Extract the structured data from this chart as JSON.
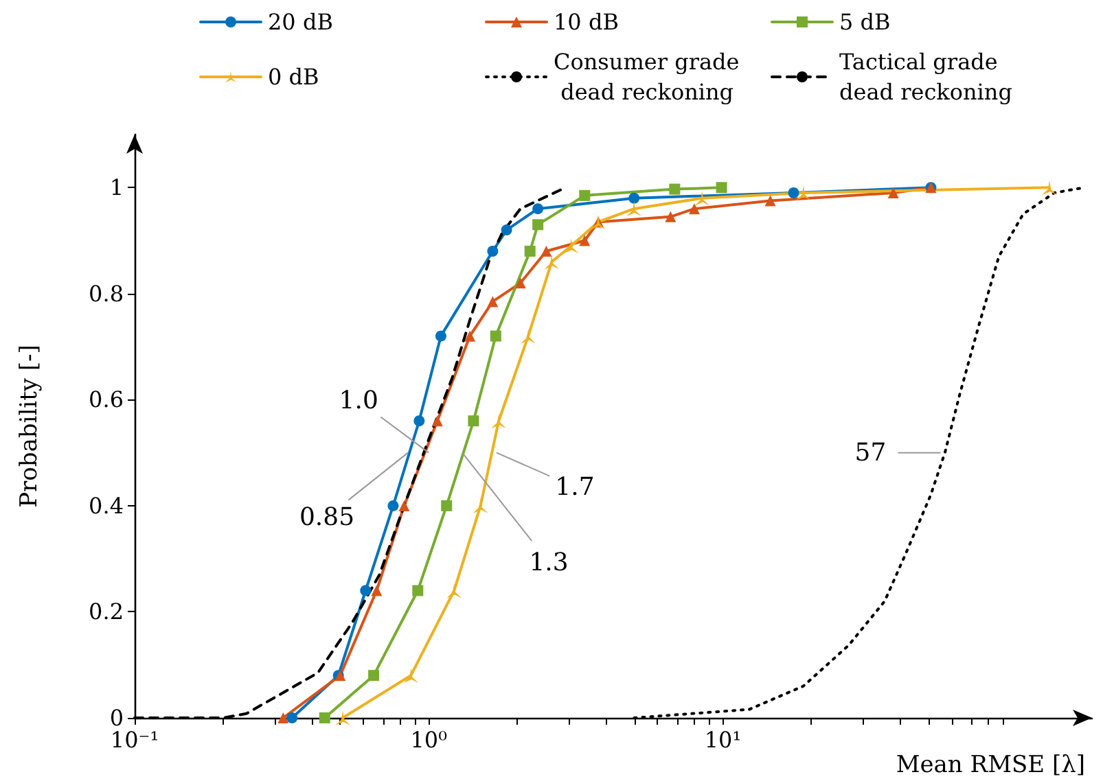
{
  "chart_data": {
    "type": "line",
    "xlabel": "Mean RMSE [λ]",
    "ylabel": "Probability [-]",
    "log": "x",
    "grid": false,
    "legend": "top",
    "xlim": [
      0.1,
      180
    ],
    "ylim": [
      0,
      1.1
    ],
    "xticks": [
      {
        "value": 0.1,
        "label": "10⁻¹"
      },
      {
        "value": 0.2,
        "label": null
      },
      {
        "value": 0.3,
        "label": null
      },
      {
        "value": 0.4,
        "label": null
      },
      {
        "value": 0.5,
        "label": null
      },
      {
        "value": 0.6,
        "label": null
      },
      {
        "value": 0.7,
        "label": null
      },
      {
        "value": 0.8,
        "label": null
      },
      {
        "value": 0.9,
        "label": null
      },
      {
        "value": 1,
        "label": "10⁰"
      },
      {
        "value": 2,
        "label": null
      },
      {
        "value": 3,
        "label": null
      },
      {
        "value": 4,
        "label": null
      },
      {
        "value": 5,
        "label": null
      },
      {
        "value": 6,
        "label": null
      },
      {
        "value": 7,
        "label": null
      },
      {
        "value": 8,
        "label": null
      },
      {
        "value": 9,
        "label": null
      },
      {
        "value": 10,
        "label": "10¹"
      },
      {
        "value": 20,
        "label": null
      },
      {
        "value": 30,
        "label": null
      },
      {
        "value": 40,
        "label": null
      },
      {
        "value": 50,
        "label": null
      },
      {
        "value": 60,
        "label": null
      },
      {
        "value": 70,
        "label": null
      },
      {
        "value": 80,
        "label": null
      },
      {
        "value": 90,
        "label": null
      }
    ],
    "yticks": [
      0,
      0.2,
      0.4,
      0.6,
      0.8,
      1
    ],
    "series": [
      {
        "name": "20 dB",
        "color": "#0072bd",
        "marker": "circle",
        "line_style": "solid",
        "x": [
          0.343,
          0.493,
          0.61,
          0.757,
          0.928,
          1.1,
          1.65,
          1.84,
          2.35,
          4.99,
          17.4,
          51
        ],
        "values": [
          0,
          0.08,
          0.24,
          0.4,
          0.56,
          0.72,
          0.88,
          0.92,
          0.96,
          0.98,
          0.99,
          1
        ]
      },
      {
        "name": "10 dB",
        "color": "#d95319",
        "marker": "triangle",
        "line_style": "solid",
        "x": [
          0.32,
          0.5,
          0.665,
          0.825,
          1.07,
          1.38,
          1.65,
          2.05,
          2.51,
          3.39,
          3.77,
          6.64,
          8,
          14.5,
          38,
          51
        ],
        "values": [
          0,
          0.08,
          0.24,
          0.4,
          0.56,
          0.72,
          0.785,
          0.82,
          0.88,
          0.9,
          0.935,
          0.945,
          0.96,
          0.975,
          0.99,
          1
        ]
      },
      {
        "name": "5 dB",
        "color": "#77ac30",
        "marker": "square",
        "line_style": "solid",
        "x": [
          0.443,
          0.65,
          0.918,
          1.15,
          1.42,
          1.69,
          2.21,
          2.35,
          3.39,
          6.86,
          9.9
        ],
        "values": [
          0,
          0.08,
          0.24,
          0.4,
          0.56,
          0.72,
          0.88,
          0.93,
          0.985,
          0.997,
          1
        ]
      },
      {
        "name": "0 dB",
        "color": "#edb120",
        "marker": "star",
        "line_style": "solid",
        "x": [
          0.51,
          0.87,
          1.22,
          1.5,
          1.73,
          2.18,
          2.62,
          3.05,
          3.77,
          4.99,
          8.5,
          18.8,
          129
        ],
        "values": [
          0,
          0.08,
          0.24,
          0.4,
          0.56,
          0.72,
          0.86,
          0.89,
          0.935,
          0.96,
          0.98,
          0.99,
          1
        ]
      },
      {
        "name": "Consumer grade dead reckoning",
        "color": "#000000",
        "marker": "none",
        "line_style": "dotted",
        "x": [
          5,
          12.3,
          18.8,
          26.8,
          35.5,
          41.9,
          50.9,
          56.9,
          63.9,
          74.2,
          86.8,
          105,
          134,
          169
        ],
        "values": [
          0,
          0.016,
          0.06,
          0.137,
          0.22,
          0.31,
          0.42,
          0.5,
          0.61,
          0.74,
          0.87,
          0.95,
          0.99,
          1
        ]
      },
      {
        "name": "Tactical grade dead reckoning",
        "color": "#000000",
        "marker": "none",
        "line_style": "dashed",
        "x": [
          0.1,
          0.2,
          0.24,
          0.42,
          0.55,
          0.68,
          0.825,
          1,
          1.2,
          1.38,
          1.6,
          1.78,
          2.05,
          2.92
        ],
        "values": [
          0,
          0,
          0.008,
          0.085,
          0.18,
          0.27,
          0.4,
          0.525,
          0.64,
          0.75,
          0.86,
          0.915,
          0.96,
          1
        ]
      }
    ],
    "annotations": [
      {
        "text": "1.0",
        "x": 1.0,
        "y": 0.5
      },
      {
        "text": "0.85",
        "x": 0.85,
        "y": 0.5
      },
      {
        "text": "1.7",
        "x": 1.7,
        "y": 0.5
      },
      {
        "text": "1.3",
        "x": 1.3,
        "y": 0.5
      },
      {
        "text": "57",
        "x": 55,
        "y": 0.5
      }
    ]
  }
}
